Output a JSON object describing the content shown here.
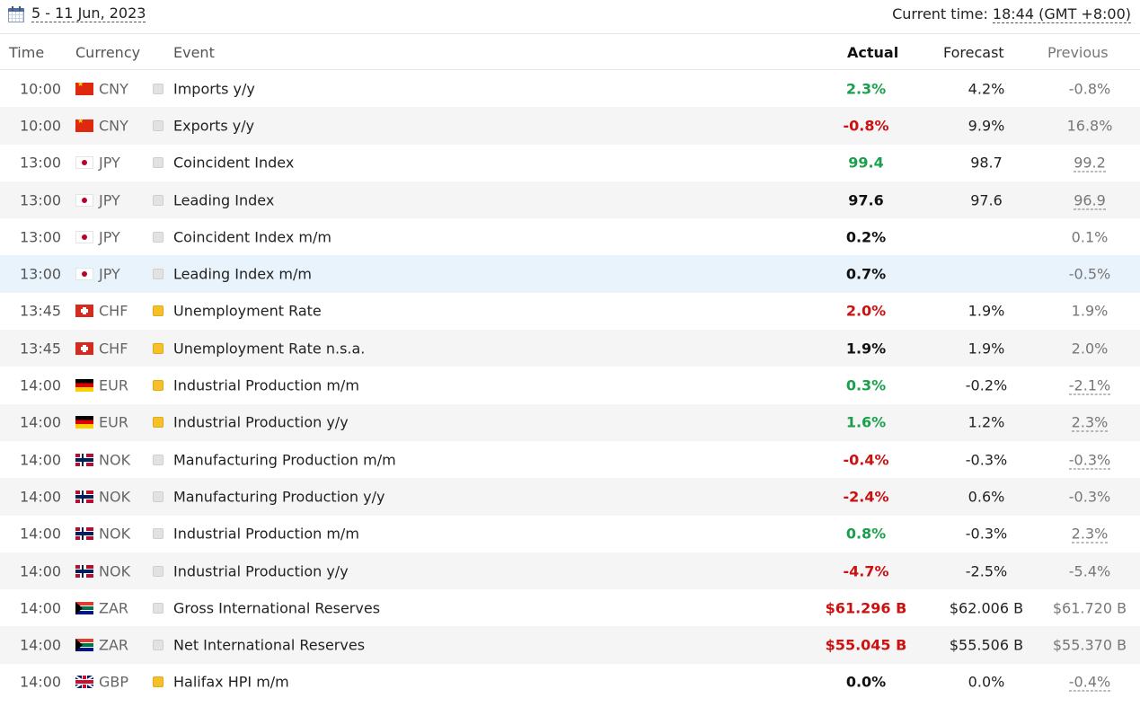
{
  "topbar": {
    "date_range": "5 - 11 Jun, 2023",
    "current_time_label": "Current time:",
    "current_time_value": "18:44 (GMT +8:00)"
  },
  "columns": {
    "time": "Time",
    "currency": "Currency",
    "event": "Event",
    "actual": "Actual",
    "forecast": "Forecast",
    "previous": "Previous"
  },
  "colors": {
    "positive": "#1a9f4c",
    "negative": "#cc1111",
    "importance_medium": "#f5c02a",
    "importance_low": "#e2e2e2",
    "highlight_row": "#e8f3fc"
  },
  "rows": [
    {
      "time": "10:00",
      "flag": "flag-cn",
      "currency": "CNY",
      "importance": "low",
      "event": "Imports y/y",
      "actual": "2.3%",
      "actual_tone": "pos",
      "forecast": "4.2%",
      "previous": "-0.8%",
      "previous_revised": false
    },
    {
      "time": "10:00",
      "flag": "flag-cn",
      "currency": "CNY",
      "importance": "low",
      "event": "Exports y/y",
      "actual": "-0.8%",
      "actual_tone": "neg",
      "forecast": "9.9%",
      "previous": "16.8%",
      "previous_revised": false
    },
    {
      "time": "13:00",
      "flag": "flag-jp",
      "currency": "JPY",
      "importance": "low",
      "event": "Coincident Index",
      "actual": "99.4",
      "actual_tone": "pos",
      "forecast": "98.7",
      "previous": "99.2",
      "previous_revised": true
    },
    {
      "time": "13:00",
      "flag": "flag-jp",
      "currency": "JPY",
      "importance": "low",
      "event": "Leading Index",
      "actual": "97.6",
      "actual_tone": "neutral",
      "forecast": "97.6",
      "previous": "96.9",
      "previous_revised": true
    },
    {
      "time": "13:00",
      "flag": "flag-jp",
      "currency": "JPY",
      "importance": "low",
      "event": "Coincident Index m/m",
      "actual": "0.2%",
      "actual_tone": "neutral",
      "forecast": "",
      "previous": "0.1%",
      "previous_revised": false
    },
    {
      "time": "13:00",
      "flag": "flag-jp",
      "currency": "JPY",
      "importance": "low",
      "event": "Leading Index m/m",
      "actual": "0.7%",
      "actual_tone": "neutral",
      "forecast": "",
      "previous": "-0.5%",
      "previous_revised": false,
      "highlight": true
    },
    {
      "time": "13:45",
      "flag": "flag-ch",
      "currency": "CHF",
      "importance": "medium",
      "event": "Unemployment Rate",
      "actual": "2.0%",
      "actual_tone": "neg",
      "forecast": "1.9%",
      "previous": "1.9%",
      "previous_revised": false
    },
    {
      "time": "13:45",
      "flag": "flag-ch",
      "currency": "CHF",
      "importance": "medium",
      "event": "Unemployment Rate n.s.a.",
      "actual": "1.9%",
      "actual_tone": "neutral",
      "forecast": "1.9%",
      "previous": "2.0%",
      "previous_revised": false
    },
    {
      "time": "14:00",
      "flag": "flag-de",
      "currency": "EUR",
      "importance": "medium",
      "event": "Industrial Production m/m",
      "actual": "0.3%",
      "actual_tone": "pos",
      "forecast": "-0.2%",
      "previous": "-2.1%",
      "previous_revised": true
    },
    {
      "time": "14:00",
      "flag": "flag-de",
      "currency": "EUR",
      "importance": "medium",
      "event": "Industrial Production y/y",
      "actual": "1.6%",
      "actual_tone": "pos",
      "forecast": "1.2%",
      "previous": "2.3%",
      "previous_revised": true
    },
    {
      "time": "14:00",
      "flag": "flag-no",
      "currency": "NOK",
      "importance": "low",
      "event": "Manufacturing Production m/m",
      "actual": "-0.4%",
      "actual_tone": "neg",
      "forecast": "-0.3%",
      "previous": "-0.3%",
      "previous_revised": true
    },
    {
      "time": "14:00",
      "flag": "flag-no",
      "currency": "NOK",
      "importance": "low",
      "event": "Manufacturing Production y/y",
      "actual": "-2.4%",
      "actual_tone": "neg",
      "forecast": "0.6%",
      "previous": "-0.3%",
      "previous_revised": false
    },
    {
      "time": "14:00",
      "flag": "flag-no",
      "currency": "NOK",
      "importance": "low",
      "event": "Industrial Production m/m",
      "actual": "0.8%",
      "actual_tone": "pos",
      "forecast": "-0.3%",
      "previous": "2.3%",
      "previous_revised": true
    },
    {
      "time": "14:00",
      "flag": "flag-no",
      "currency": "NOK",
      "importance": "low",
      "event": "Industrial Production y/y",
      "actual": "-4.7%",
      "actual_tone": "neg",
      "forecast": "-2.5%",
      "previous": "-5.4%",
      "previous_revised": false
    },
    {
      "time": "14:00",
      "flag": "flag-za",
      "currency": "ZAR",
      "importance": "low",
      "event": "Gross International Reserves",
      "actual": "$61.296 B",
      "actual_tone": "neg",
      "forecast": "$62.006 B",
      "previous": "$61.720 B",
      "previous_revised": false
    },
    {
      "time": "14:00",
      "flag": "flag-za",
      "currency": "ZAR",
      "importance": "low",
      "event": "Net International Reserves",
      "actual": "$55.045 B",
      "actual_tone": "neg",
      "forecast": "$55.506 B",
      "previous": "$55.370 B",
      "previous_revised": false
    },
    {
      "time": "14:00",
      "flag": "flag-gb",
      "currency": "GBP",
      "importance": "medium",
      "event": "Halifax HPI m/m",
      "actual": "0.0%",
      "actual_tone": "neutral",
      "forecast": "0.0%",
      "previous": "-0.4%",
      "previous_revised": true
    }
  ]
}
